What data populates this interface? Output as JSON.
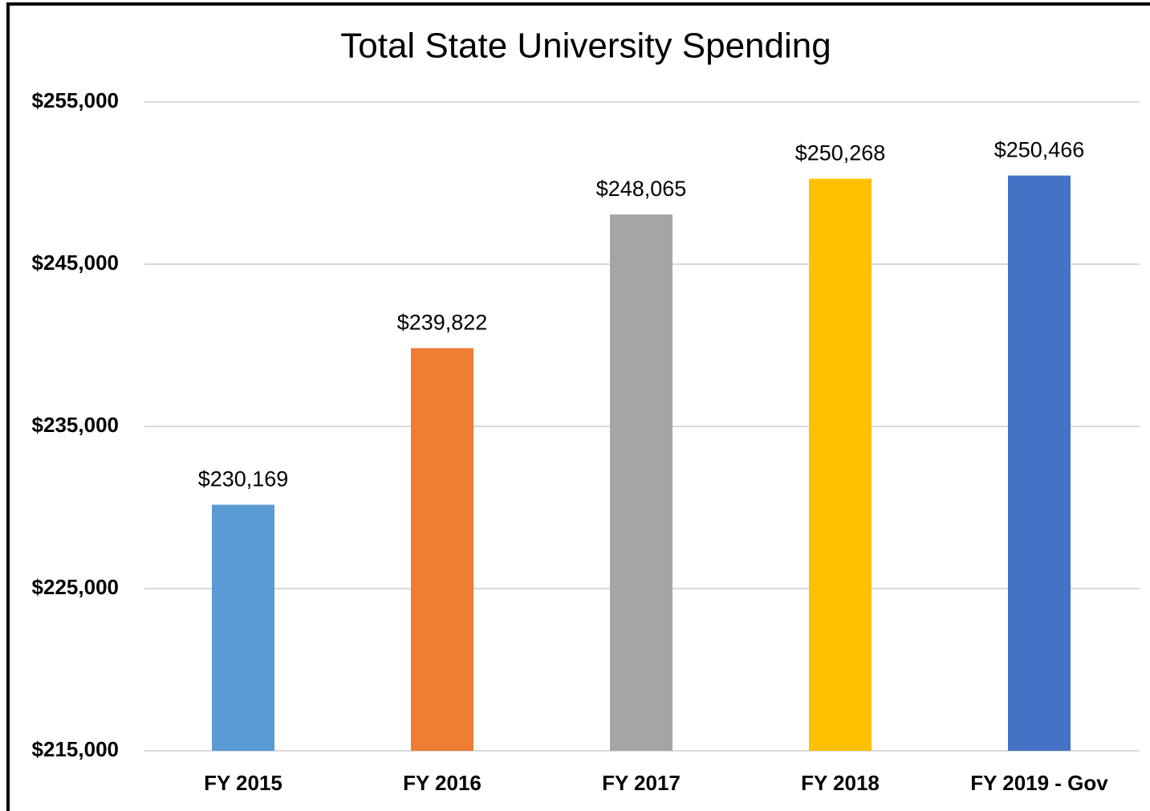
{
  "chart_data": {
    "type": "bar",
    "title": "Total State University Spending",
    "categories": [
      "FY 2015",
      "FY 2016",
      "FY 2017",
      "FY 2018",
      "FY 2019 - Gov"
    ],
    "values": [
      230169,
      239822,
      248065,
      250268,
      250466
    ],
    "value_labels": [
      "$230,169",
      "$239,822",
      "$248,065",
      "$250,268",
      "$250,466"
    ],
    "colors": [
      "#5b9bd5",
      "#ed7d31",
      "#a5a5a5",
      "#ffc000",
      "#4472c4"
    ],
    "ylim": [
      215000,
      255000
    ],
    "yticks": [
      {
        "value": 215000,
        "label": "$215,000"
      },
      {
        "value": 225000,
        "label": "$225,000"
      },
      {
        "value": 235000,
        "label": "$235,000"
      },
      {
        "value": 245000,
        "label": "$245,000"
      },
      {
        "value": 255000,
        "label": "$255,000"
      }
    ],
    "grid": true
  }
}
